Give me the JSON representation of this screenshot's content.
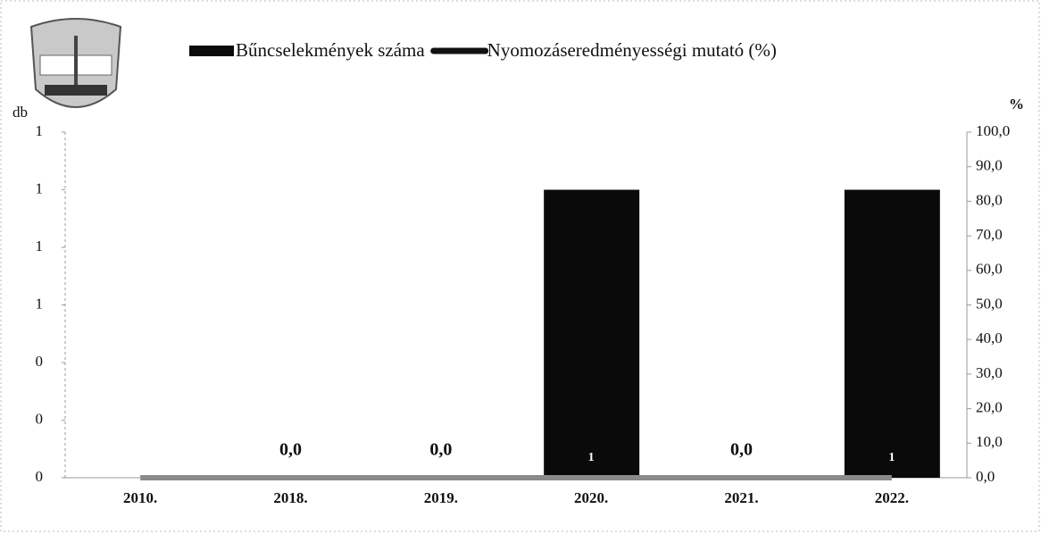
{
  "chart_data": {
    "type": "bar_line",
    "categories": [
      "2010.",
      "2018.",
      "2019.",
      "2020.",
      "2021.",
      "2022."
    ],
    "y_label": "db",
    "y2_label": "%",
    "series": [
      {
        "name": "Bűncselekmények száma",
        "type": "bar",
        "color": "#0a0a0a",
        "values": [
          0,
          0,
          0,
          1,
          0,
          1
        ],
        "value_labels": [
          null,
          null,
          null,
          "1",
          null,
          "1"
        ]
      },
      {
        "name": "Nyomozáseredményességi mutató (%)",
        "type": "line",
        "axis": "y2",
        "color": "#8a8a8a",
        "values": [
          0,
          0,
          0,
          0,
          0,
          0
        ],
        "value_labels": [
          null,
          "0,0",
          "0,0",
          null,
          "0,0",
          null
        ]
      }
    ],
    "ylim": [
      0,
      1.2
    ],
    "yticks": [
      {
        "value": 0,
        "label": "0"
      },
      {
        "value": 0.2,
        "label": "0"
      },
      {
        "value": 0.4,
        "label": "0"
      },
      {
        "value": 0.6,
        "label": "1"
      },
      {
        "value": 0.8,
        "label": "1"
      },
      {
        "value": 1.0,
        "label": "1"
      },
      {
        "value": 1.2,
        "label": "1"
      }
    ],
    "y2lim": [
      0,
      100
    ],
    "y2ticks": [
      {
        "value": 0,
        "label": "0,0"
      },
      {
        "value": 10,
        "label": "10,0"
      },
      {
        "value": 20,
        "label": "20,0"
      },
      {
        "value": 30,
        "label": "30,0"
      },
      {
        "value": 40,
        "label": "40,0"
      },
      {
        "value": 50,
        "label": "50,0"
      },
      {
        "value": 60,
        "label": "60,0"
      },
      {
        "value": 70,
        "label": "70,0"
      },
      {
        "value": 80,
        "label": "80,0"
      },
      {
        "value": 90,
        "label": "90,0"
      },
      {
        "value": 100,
        "label": "100,0"
      }
    ]
  }
}
